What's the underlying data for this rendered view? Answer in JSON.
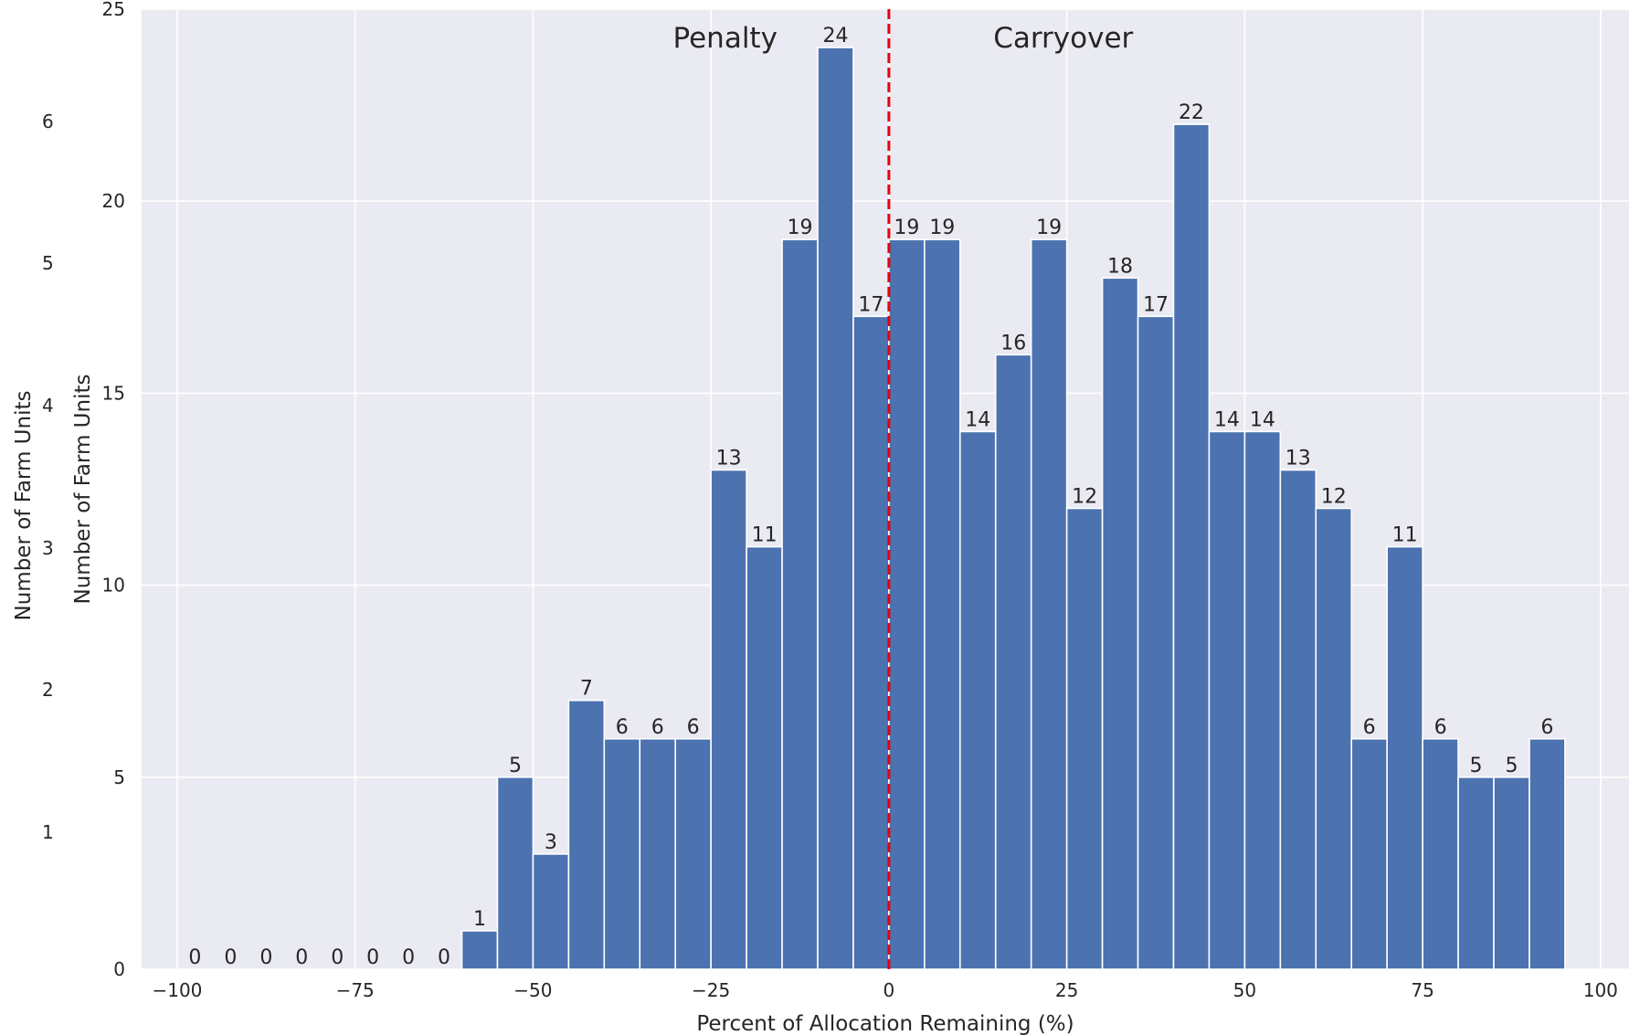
{
  "chart_data": {
    "type": "bar",
    "xlabel": "Percent of Allocation Remaining (%)",
    "ylabel": "Number of Farm Units",
    "ghost_ylabel": "Number of Farm Units",
    "ghost_ticks": [
      "6",
      "5",
      "4",
      "3",
      "2",
      "1"
    ],
    "xlim": [
      -105,
      104
    ],
    "ylim": [
      0,
      25
    ],
    "x_ticks": [
      -100,
      -75,
      -50,
      -25,
      0,
      25,
      50,
      75,
      100
    ],
    "x_tick_labels": [
      "−100",
      "−75",
      "−50",
      "−25",
      "0",
      "25",
      "50",
      "75",
      "100"
    ],
    "y_ticks": [
      0,
      5,
      10,
      15,
      20,
      25
    ],
    "y_tick_labels": [
      "0",
      "5",
      "10",
      "15",
      "20",
      "25"
    ],
    "grid": true,
    "bin_width": 5,
    "bins": [
      {
        "start": -100,
        "value": 0
      },
      {
        "start": -95,
        "value": 0
      },
      {
        "start": -90,
        "value": 0
      },
      {
        "start": -85,
        "value": 0
      },
      {
        "start": -80,
        "value": 0
      },
      {
        "start": -75,
        "value": 0
      },
      {
        "start": -70,
        "value": 0
      },
      {
        "start": -65,
        "value": 0
      },
      {
        "start": -60,
        "value": 1
      },
      {
        "start": -55,
        "value": 5
      },
      {
        "start": -50,
        "value": 3
      },
      {
        "start": -45,
        "value": 7
      },
      {
        "start": -40,
        "value": 6
      },
      {
        "start": -35,
        "value": 6
      },
      {
        "start": -30,
        "value": 6
      },
      {
        "start": -25,
        "value": 13
      },
      {
        "start": -20,
        "value": 11
      },
      {
        "start": -15,
        "value": 19
      },
      {
        "start": -10,
        "value": 24
      },
      {
        "start": -5,
        "value": 17
      },
      {
        "start": 0,
        "value": 19
      },
      {
        "start": 5,
        "value": 19
      },
      {
        "start": 10,
        "value": 14
      },
      {
        "start": 15,
        "value": 16
      },
      {
        "start": 20,
        "value": 19
      },
      {
        "start": 25,
        "value": 12
      },
      {
        "start": 30,
        "value": 18
      },
      {
        "start": 35,
        "value": 17
      },
      {
        "start": 40,
        "value": 22
      },
      {
        "start": 45,
        "value": 14
      },
      {
        "start": 50,
        "value": 14
      },
      {
        "start": 55,
        "value": 13
      },
      {
        "start": 60,
        "value": 12
      },
      {
        "start": 65,
        "value": 6
      },
      {
        "start": 70,
        "value": 11
      },
      {
        "start": 75,
        "value": 6
      },
      {
        "start": 80,
        "value": 5
      },
      {
        "start": 85,
        "value": 5
      },
      {
        "start": 90,
        "value": 6
      }
    ],
    "reference_line": {
      "x": 0,
      "style": "dashed",
      "color": "#e8000b"
    },
    "annotations": [
      {
        "text": "Penalty",
        "x": -23,
        "y": 24.0
      },
      {
        "text": "Carryover",
        "x": 24.5,
        "y": 24.0
      }
    ],
    "colors": {
      "bar": "#4c72b0",
      "background": "#eaeaf2",
      "grid": "#ffffff"
    }
  }
}
